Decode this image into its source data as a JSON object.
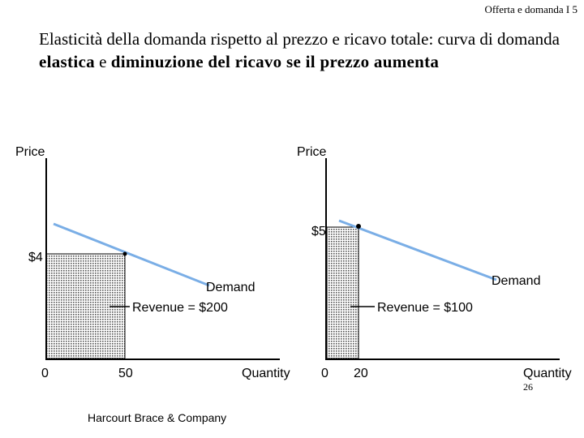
{
  "header": {
    "label": "Offerta e domanda I 5"
  },
  "title": {
    "part1": "Elasticità della domanda rispetto al prezzo e ricavo totale: curva di domanda ",
    "part2": "elastica",
    "part3": " e ",
    "part4": "diminuzione del ricavo se il prezzo aumenta"
  },
  "left_panel": {
    "y_axis_label": "Price",
    "x_axis_label": "Quantity",
    "price_label": "$4",
    "origin_label": "0",
    "quantity_label": "50",
    "curve_label": "Demand",
    "revenue_label": "Revenue = $200"
  },
  "right_panel": {
    "y_axis_label": "Price",
    "x_axis_label": "Quantity",
    "price_label": "$5",
    "origin_label": "0",
    "quantity_label": "20",
    "curve_label": "Demand",
    "revenue_label": "Revenue = $100"
  },
  "colors": {
    "demand_line": "#7aaee6",
    "revenue_area": "#d6d6d6",
    "axis": "#000000"
  },
  "footer": {
    "publisher": "Harcourt Brace & Company",
    "page_number": "26"
  }
}
